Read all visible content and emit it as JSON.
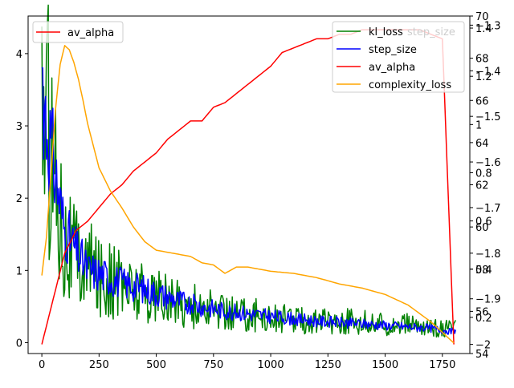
{
  "chart_data": {
    "type": "line",
    "xlabel": "",
    "x_ticks": [
      0,
      250,
      500,
      750,
      1000,
      1250,
      1500,
      1750
    ],
    "xlim": [
      -60,
      1870
    ],
    "axes": {
      "left": {
        "ticks": [
          0,
          1,
          2,
          3,
          4
        ],
        "ylim": [
          -0.15,
          4.52
        ]
      },
      "right_1": {
        "ticks": [
          0.2,
          0.4,
          0.6,
          0.8,
          1.0,
          1.2,
          1.4
        ],
        "ylim": [
          0.05,
          1.45
        ]
      },
      "right_2": {
        "ticks": [
          -2.0,
          -1.9,
          -1.8,
          -1.7,
          -1.6,
          -1.5,
          -1.4,
          -1.3
        ],
        "ylim": [
          -2.02,
          -1.28
        ]
      },
      "right_3": {
        "ticks": [
          54,
          56,
          58,
          60,
          62,
          64,
          66,
          68,
          70
        ],
        "ylim": [
          54,
          70
        ]
      }
    },
    "series": [
      {
        "name": "kl_loss",
        "color": "#008000",
        "axis": "left",
        "noise": "high",
        "x": [
          0,
          20,
          40,
          60,
          80,
          100,
          150,
          200,
          250,
          300,
          350,
          400,
          450,
          500,
          600,
          700,
          800,
          900,
          1000,
          1100,
          1200,
          1300,
          1400,
          1500,
          1600,
          1700,
          1800
        ],
        "y": [
          3.6,
          3.1,
          2.8,
          2.3,
          1.9,
          1.5,
          1.2,
          1.05,
          0.95,
          0.85,
          0.8,
          0.75,
          0.7,
          0.65,
          0.55,
          0.48,
          0.42,
          0.4,
          0.35,
          0.32,
          0.3,
          0.3,
          0.28,
          0.25,
          0.25,
          0.2,
          0.2
        ]
      },
      {
        "name": "step_size",
        "color": "#0000ff",
        "axis": "left",
        "noise": "medium",
        "x": [
          0,
          20,
          40,
          60,
          80,
          100,
          150,
          200,
          250,
          300,
          350,
          400,
          450,
          500,
          600,
          700,
          800,
          900,
          1000,
          1100,
          1200,
          1300,
          1400,
          1500,
          1600,
          1700,
          1800
        ],
        "y": [
          3.8,
          3.0,
          2.7,
          2.3,
          1.9,
          1.55,
          1.25,
          1.0,
          0.95,
          0.88,
          0.82,
          0.78,
          0.73,
          0.68,
          0.58,
          0.5,
          0.44,
          0.4,
          0.36,
          0.33,
          0.3,
          0.28,
          0.26,
          0.24,
          0.22,
          0.2,
          0.15
        ]
      },
      {
        "name": "av_alpha",
        "color": "#ff0000",
        "axis": "right_2",
        "noise": "none",
        "x": [
          0,
          50,
          100,
          150,
          200,
          250,
          300,
          350,
          400,
          450,
          500,
          550,
          600,
          650,
          700,
          750,
          800,
          850,
          900,
          950,
          1000,
          1050,
          1100,
          1150,
          1200,
          1250,
          1300,
          1350,
          1400,
          1450,
          1500,
          1550,
          1600,
          1650,
          1700,
          1750,
          1800
        ],
        "y": [
          -2.0,
          -1.9,
          -1.8,
          -1.75,
          -1.73,
          -1.7,
          -1.67,
          -1.65,
          -1.62,
          -1.6,
          -1.58,
          -1.55,
          -1.53,
          -1.51,
          -1.51,
          -1.48,
          -1.47,
          -1.45,
          -1.43,
          -1.41,
          -1.39,
          -1.36,
          -1.35,
          -1.34,
          -1.33,
          -1.33,
          -1.32,
          -1.32,
          -1.31,
          -1.31,
          -1.31,
          -1.31,
          -1.31,
          -1.31,
          -1.32,
          -1.33,
          -2.0
        ]
      },
      {
        "name": "complexity_loss",
        "color": "#ffa500",
        "axis": "right_3",
        "noise": "none",
        "x": [
          0,
          20,
          40,
          60,
          80,
          100,
          120,
          140,
          160,
          180,
          200,
          250,
          300,
          350,
          400,
          450,
          500,
          550,
          600,
          650,
          700,
          750,
          800,
          850,
          900,
          950,
          1000,
          1100,
          1200,
          1300,
          1400,
          1500,
          1600,
          1700,
          1750,
          1800
        ],
        "y": [
          57.7,
          59.5,
          62.5,
          65.6,
          67.7,
          68.6,
          68.4,
          67.8,
          67.0,
          66.0,
          64.9,
          62.8,
          61.7,
          60.9,
          60.0,
          59.3,
          58.9,
          58.8,
          58.7,
          58.6,
          58.3,
          58.2,
          57.8,
          58.1,
          58.1,
          58.0,
          57.9,
          57.8,
          57.6,
          57.3,
          57.1,
          56.8,
          56.3,
          55.5,
          55.0,
          54.5
        ]
      }
    ],
    "legends": {
      "upper_left": [
        "av_alpha"
      ],
      "upper_right": [
        "kl_loss",
        "step_size",
        "av_alpha",
        "complexity_loss"
      ],
      "overlapped_label": "step_size"
    },
    "grid": false
  }
}
